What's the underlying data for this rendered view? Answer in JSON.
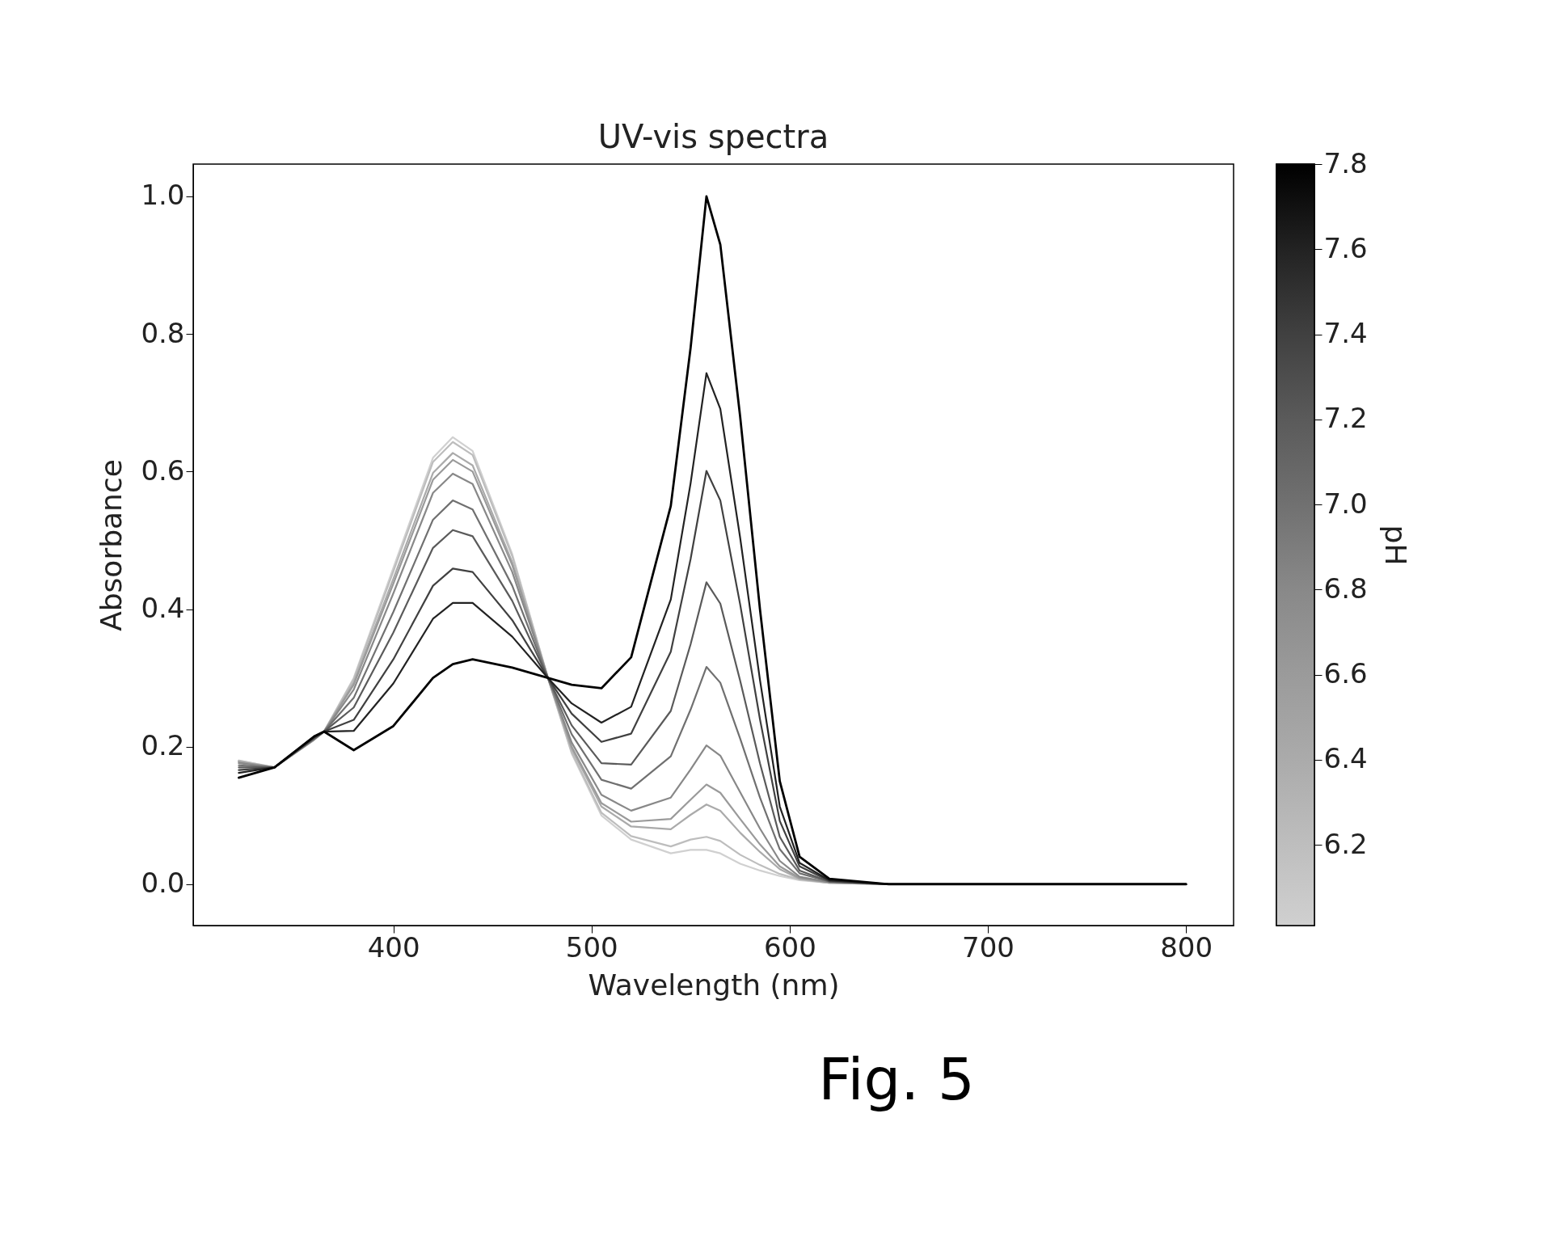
{
  "chart_data": {
    "type": "line",
    "title": "UV-vis spectra",
    "xlabel": "Wavelength (nm)",
    "ylabel": "Absorbance",
    "clabel": "pH",
    "annotations": [
      "Fig. 5"
    ],
    "x": [
      322,
      340,
      360,
      365,
      380,
      400,
      420,
      430,
      440,
      460,
      478,
      490,
      505,
      520,
      540,
      550,
      558,
      565,
      575,
      585,
      595,
      605,
      620,
      650,
      700,
      750,
      800
    ],
    "series": [
      {
        "color": "#000000",
        "values": [
          0.155,
          0.17,
          0.215,
          0.222,
          0.195,
          0.23,
          0.3,
          0.32,
          0.327,
          0.315,
          0.3,
          0.29,
          0.285,
          0.33,
          0.55,
          0.78,
          1.0,
          0.93,
          0.68,
          0.4,
          0.15,
          0.04,
          0.008,
          0,
          0,
          0,
          0
        ]
      },
      {
        "color": "#222222",
        "values": [
          0.162,
          0.17,
          0.214,
          0.222,
          0.223,
          0.292,
          0.386,
          0.409,
          0.409,
          0.36,
          0.3,
          0.263,
          0.235,
          0.258,
          0.414,
          0.583,
          0.743,
          0.691,
          0.504,
          0.297,
          0.113,
          0.031,
          0.006,
          0,
          0,
          0,
          0
        ]
      },
      {
        "color": "#404040",
        "values": [
          0.166,
          0.17,
          0.213,
          0.222,
          0.239,
          0.327,
          0.434,
          0.459,
          0.454,
          0.384,
          0.3,
          0.248,
          0.207,
          0.219,
          0.338,
          0.473,
          0.601,
          0.558,
          0.407,
          0.24,
          0.092,
          0.026,
          0.005,
          0,
          0,
          0,
          0
        ]
      },
      {
        "color": "#5a5a5a",
        "values": [
          0.17,
          0.17,
          0.212,
          0.222,
          0.257,
          0.366,
          0.489,
          0.515,
          0.506,
          0.412,
          0.3,
          0.231,
          0.176,
          0.174,
          0.252,
          0.349,
          0.439,
          0.408,
          0.296,
          0.176,
          0.069,
          0.02,
          0.004,
          0,
          0,
          0,
          0
        ]
      },
      {
        "color": "#707070",
        "values": [
          0.173,
          0.17,
          0.211,
          0.222,
          0.271,
          0.396,
          0.53,
          0.558,
          0.545,
          0.434,
          0.3,
          0.218,
          0.152,
          0.139,
          0.186,
          0.254,
          0.316,
          0.293,
          0.212,
          0.126,
          0.051,
          0.016,
          0.004,
          0,
          0,
          0,
          0
        ]
      },
      {
        "color": "#888888",
        "values": [
          0.176,
          0.17,
          0.211,
          0.222,
          0.283,
          0.423,
          0.569,
          0.597,
          0.582,
          0.454,
          0.3,
          0.206,
          0.13,
          0.107,
          0.126,
          0.167,
          0.202,
          0.187,
          0.134,
          0.081,
          0.034,
          0.011,
          0.003,
          0,
          0,
          0,
          0
        ]
      },
      {
        "color": "#9a9a9a",
        "values": [
          0.178,
          0.17,
          0.211,
          0.222,
          0.29,
          0.437,
          0.588,
          0.617,
          0.6,
          0.464,
          0.3,
          0.2,
          0.118,
          0.091,
          0.095,
          0.123,
          0.145,
          0.133,
          0.095,
          0.058,
          0.026,
          0.009,
          0.003,
          0,
          0,
          0,
          0
        ]
      },
      {
        "color": "#aaaaaa",
        "values": [
          0.178,
          0.17,
          0.21,
          0.222,
          0.293,
          0.444,
          0.598,
          0.627,
          0.609,
          0.468,
          0.3,
          0.197,
          0.113,
          0.084,
          0.08,
          0.101,
          0.116,
          0.107,
          0.075,
          0.047,
          0.022,
          0.008,
          0.002,
          0,
          0,
          0,
          0
        ]
      },
      {
        "color": "#bdbdbd",
        "values": [
          0.18,
          0.17,
          0.21,
          0.222,
          0.298,
          0.455,
          0.614,
          0.643,
          0.624,
          0.477,
          0.3,
          0.192,
          0.104,
          0.07,
          0.055,
          0.065,
          0.069,
          0.063,
          0.043,
          0.028,
          0.015,
          0.007,
          0.002,
          0,
          0,
          0,
          0
        ]
      },
      {
        "color": "#d0d0d0",
        "values": [
          0.18,
          0.17,
          0.21,
          0.222,
          0.3,
          0.46,
          0.62,
          0.65,
          0.63,
          0.48,
          0.3,
          0.19,
          0.1,
          0.065,
          0.045,
          0.05,
          0.05,
          0.045,
          0.03,
          0.02,
          0.012,
          0.006,
          0.002,
          0,
          0,
          0,
          0
        ]
      }
    ],
    "xlim": [
      299,
      824
    ],
    "ylim": [
      -0.06,
      1.047
    ],
    "xticks": [
      400,
      500,
      600,
      700,
      800
    ],
    "yticks": [
      {
        "value": 0,
        "label": "0.0"
      },
      0.2,
      0.4,
      0.6,
      0.8,
      {
        "value": 1,
        "label": "1.0"
      }
    ],
    "clim": [
      6.01,
      7.8
    ],
    "cticks": [
      6.2,
      6.4,
      6.6,
      6.8,
      {
        "value": 7,
        "label": "7.0"
      },
      7.2,
      7.4,
      7.6,
      7.8
    ]
  }
}
